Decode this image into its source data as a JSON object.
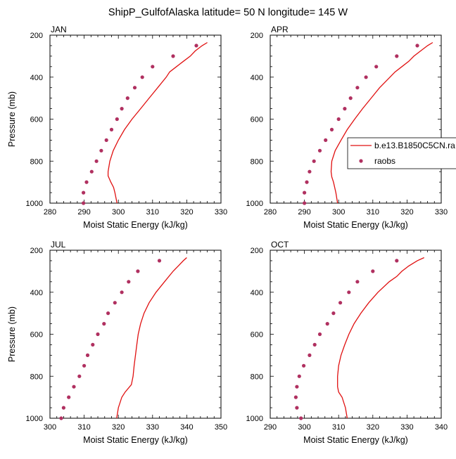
{
  "figure_title": "ShipP_GulfofAlaska  latitude= 50 N longitude= 145 W",
  "legend": {
    "model_label": "b.e13.B1850C5CN.ra",
    "obs_label": "raobs",
    "model_color": "#e01010",
    "obs_color": "#b03060"
  },
  "chart_data": [
    {
      "type": "line",
      "panel": "JAN",
      "title": "JAN",
      "xlabel": "Moist Static Energy (kJ/kg)",
      "ylabel": "Pressure (mb)",
      "xlim": [
        280,
        330
      ],
      "ylim": [
        1000,
        200
      ],
      "xticks": [
        280,
        290,
        300,
        310,
        320,
        330
      ],
      "yticks": [
        200,
        400,
        600,
        800,
        1000
      ],
      "model": {
        "name": "b.e13.B1850C5CN.ra",
        "p": [
          235,
          250,
          275,
          300,
          325,
          350,
          375,
          400,
          450,
          500,
          550,
          600,
          650,
          700,
          750,
          800,
          850,
          870,
          900,
          925,
          950,
          975,
          1000
        ],
        "mse": [
          326.0,
          324.5,
          322.5,
          321.0,
          319.0,
          317.0,
          315.0,
          314.0,
          311.5,
          309.0,
          306.5,
          304.0,
          301.8,
          300.0,
          298.5,
          297.5,
          297.0,
          297.0,
          297.8,
          298.6,
          299.0,
          299.3,
          299.6
        ]
      },
      "obs": {
        "name": "raobs",
        "p": [
          250,
          300,
          350,
          400,
          450,
          500,
          550,
          600,
          650,
          700,
          750,
          800,
          850,
          900,
          950,
          1000
        ],
        "mse": [
          322.8,
          316.0,
          310.0,
          307.0,
          304.8,
          302.7,
          301.0,
          299.6,
          298.0,
          296.5,
          295.0,
          293.6,
          292.2,
          290.7,
          289.8,
          289.8
        ]
      }
    },
    {
      "type": "line",
      "panel": "APR",
      "title": "APR",
      "xlabel": "Moist Static Energy (kJ/kg)",
      "ylabel": "",
      "xlim": [
        280,
        330
      ],
      "ylim": [
        1000,
        200
      ],
      "xticks": [
        280,
        290,
        300,
        310,
        320,
        330
      ],
      "yticks": [
        200,
        400,
        600,
        800,
        1000
      ],
      "model": {
        "name": "b.e13.B1850C5CN.ra",
        "p": [
          235,
          250,
          275,
          300,
          325,
          350,
          375,
          400,
          450,
          500,
          550,
          600,
          650,
          700,
          750,
          800,
          850,
          875,
          900,
          950,
          1000
        ],
        "mse": [
          327.5,
          326.0,
          324.0,
          322.0,
          320.5,
          318.5,
          316.5,
          315.0,
          312.0,
          309.5,
          307.0,
          304.7,
          302.5,
          300.7,
          299.0,
          298.0,
          297.8,
          298.0,
          298.5,
          299.2,
          299.7
        ]
      },
      "obs": {
        "name": "raobs",
        "p": [
          250,
          300,
          350,
          400,
          450,
          500,
          550,
          600,
          650,
          700,
          750,
          800,
          850,
          900,
          950,
          1000
        ],
        "mse": [
          323.0,
          317.0,
          311.0,
          308.0,
          305.5,
          303.5,
          301.8,
          300.0,
          298.0,
          296.2,
          294.5,
          292.8,
          291.5,
          290.7,
          290.0,
          290.0
        ]
      }
    },
    {
      "type": "line",
      "panel": "JUL",
      "title": "JUL",
      "xlabel": "Moist Static Energy (kJ/kg)",
      "ylabel": "Pressure (mb)",
      "xlim": [
        300,
        350
      ],
      "ylim": [
        1000,
        200
      ],
      "xticks": [
        300,
        310,
        320,
        330,
        340,
        350
      ],
      "yticks": [
        200,
        400,
        600,
        800,
        1000
      ],
      "model": {
        "name": "b.e13.B1850C5CN.ra",
        "p": [
          235,
          250,
          275,
          300,
          350,
          400,
          450,
          500,
          550,
          600,
          650,
          700,
          750,
          800,
          840,
          875,
          900,
          950,
          1000
        ],
        "mse": [
          340.0,
          339.0,
          337.5,
          336.0,
          333.5,
          331.0,
          329.0,
          327.5,
          326.5,
          325.8,
          325.4,
          325.0,
          324.6,
          324.3,
          323.8,
          322.0,
          321.0,
          320.0,
          319.5
        ]
      },
      "obs": {
        "name": "raobs",
        "p": [
          250,
          300,
          350,
          400,
          450,
          500,
          550,
          600,
          650,
          700,
          750,
          800,
          850,
          900,
          950,
          1000
        ],
        "mse": [
          332.0,
          325.7,
          323.0,
          321.0,
          319.0,
          317.0,
          315.8,
          314.0,
          312.5,
          311.0,
          310.0,
          308.6,
          307.0,
          305.5,
          304.0,
          303.3
        ]
      }
    },
    {
      "type": "line",
      "panel": "OCT",
      "title": "OCT",
      "xlabel": "Moist Static Energy (kJ/kg)",
      "ylabel": "",
      "xlim": [
        290,
        340
      ],
      "ylim": [
        1000,
        200
      ],
      "xticks": [
        290,
        300,
        310,
        320,
        330,
        340
      ],
      "yticks": [
        200,
        400,
        600,
        800,
        1000
      ],
      "model": {
        "name": "b.e13.B1850C5CN.ra",
        "p": [
          235,
          250,
          275,
          300,
          325,
          350,
          400,
          450,
          500,
          550,
          600,
          650,
          700,
          750,
          800,
          850,
          875,
          900,
          950,
          1000
        ],
        "mse": [
          335.0,
          333.0,
          330.5,
          328.5,
          327.0,
          324.8,
          321.5,
          318.8,
          316.5,
          314.5,
          313.0,
          311.8,
          310.7,
          310.0,
          309.7,
          309.7,
          310.0,
          311.0,
          312.0,
          312.5
        ]
      },
      "obs": {
        "name": "raobs",
        "p": [
          250,
          300,
          350,
          400,
          450,
          500,
          550,
          600,
          650,
          700,
          750,
          800,
          850,
          900,
          950,
          1000
        ],
        "mse": [
          327.0,
          320.0,
          315.5,
          313.0,
          310.5,
          308.5,
          306.7,
          304.5,
          303.0,
          301.5,
          299.8,
          298.5,
          297.8,
          297.5,
          297.8,
          299.0
        ]
      }
    }
  ]
}
